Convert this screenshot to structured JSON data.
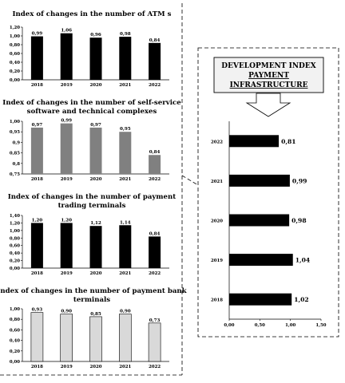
{
  "chart_data": [
    {
      "type": "bar",
      "title": "Index of changes in the number of ATM s",
      "categories": [
        "2018",
        "2019",
        "2020",
        "2021",
        "2022"
      ],
      "values": [
        0.99,
        1.06,
        0.96,
        0.98,
        0.84
      ],
      "value_labels": [
        "0,99",
        "1,06",
        "0,96",
        "0,98",
        "0,84"
      ],
      "ylim": [
        0,
        1.2
      ],
      "yticks": [
        "0,00",
        "0,20",
        "0,40",
        "0,60",
        "0,80",
        "1,00",
        "1,20"
      ],
      "bar_color": "#000000"
    },
    {
      "type": "bar",
      "title": "Index of changes in the number of self-service software and technical complexes",
      "title_lines": [
        "Index of changes in the number of self-service",
        "software and technical complexes"
      ],
      "categories": [
        "2018",
        "2019",
        "2020",
        "2021",
        "2022"
      ],
      "values": [
        0.97,
        0.99,
        0.97,
        0.95,
        0.84
      ],
      "value_labels": [
        "0,97",
        "0,99",
        "0,97",
        "0,95",
        "0,84"
      ],
      "ylim": [
        0.75,
        1.0
      ],
      "yticks": [
        "0,75",
        "0,8",
        "0,85",
        "0,9",
        "0,95",
        "1,00"
      ],
      "bar_color": "#808080"
    },
    {
      "type": "bar",
      "title": "Index of changes in the number of payment trading terminals",
      "title_lines": [
        "Index of changes in the number of payment",
        "trading terminals"
      ],
      "categories": [
        "2018",
        "2019",
        "2020",
        "2021",
        "2022"
      ],
      "values": [
        1.2,
        1.2,
        1.12,
        1.14,
        0.84
      ],
      "value_labels": [
        "1,20",
        "1,20",
        "1,12",
        "1,14",
        "0,84"
      ],
      "ylim": [
        0,
        1.4
      ],
      "yticks": [
        "0,00",
        "0,20",
        "0,40",
        "0,60",
        "0,80",
        "1,00",
        "1,20",
        "1,40"
      ],
      "bar_color": "#000000"
    },
    {
      "type": "bar",
      "title": "Index of changes in the number of payment bank terminals",
      "title_lines": [
        "Index of changes in the number of payment bank",
        "terminals"
      ],
      "categories": [
        "2018",
        "2019",
        "2020",
        "2021",
        "2022"
      ],
      "values": [
        0.93,
        0.9,
        0.85,
        0.9,
        0.73
      ],
      "value_labels": [
        "0,93",
        "0,90",
        "0,85",
        "0,90",
        "0,73"
      ],
      "ylim": [
        0,
        1.0
      ],
      "yticks": [
        "0,00",
        "0,20",
        "0,40",
        "0,60",
        "0,80",
        "1,00"
      ],
      "bar_color": "#d9d9d9"
    },
    {
      "type": "bar",
      "orientation": "horizontal",
      "title": "DEVELOPMENT INDEX PAYMENT INFRASTRUCTURE",
      "title_lines": [
        "DEVELOPMENT INDEX",
        "PAYMENT",
        "INFRASTRUCTURE"
      ],
      "categories": [
        "2022",
        "2021",
        "2020",
        "2019",
        "2018"
      ],
      "values": [
        0.81,
        0.99,
        0.98,
        1.04,
        1.02
      ],
      "value_labels": [
        "0,81",
        "0,99",
        "0,98",
        "1,04",
        "1,02"
      ],
      "xlim": [
        0,
        1.5
      ],
      "xticks": [
        "0,00",
        "0,50",
        "1,00",
        "1,50"
      ],
      "bar_color": "#000000"
    }
  ]
}
